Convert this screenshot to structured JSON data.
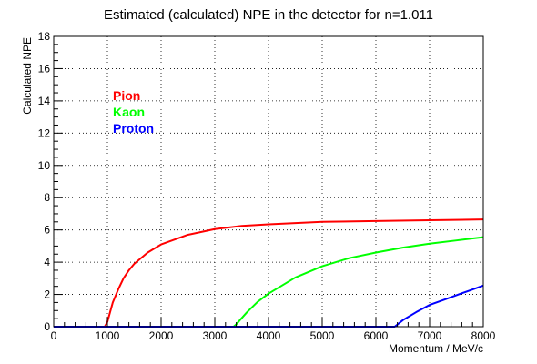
{
  "chart_data": {
    "type": "line",
    "title": "Estimated (calculated) NPE in the detector for n=1.011",
    "xlabel": "Momentum / MeV/c",
    "ylabel": "Calculated NPE",
    "xlim": [
      0,
      8000
    ],
    "ylim": [
      0,
      18
    ],
    "grid": true,
    "x_ticks": [
      0,
      1000,
      2000,
      3000,
      4000,
      5000,
      6000,
      7000,
      8000
    ],
    "y_ticks": [
      0,
      2,
      4,
      6,
      8,
      10,
      12,
      14,
      16,
      18
    ],
    "legend_position": "upper-left",
    "series": [
      {
        "name": "Pion",
        "color": "#ff0000",
        "x": [
          0,
          400,
          800,
          950,
          1000,
          1100,
          1200,
          1300,
          1400,
          1500,
          1750,
          2000,
          2500,
          3000,
          3500,
          4000,
          5000,
          6000,
          7000,
          8000
        ],
        "y": [
          0,
          0,
          0,
          0,
          0.3,
          1.5,
          2.3,
          3.0,
          3.5,
          3.9,
          4.6,
          5.1,
          5.7,
          6.05,
          6.25,
          6.35,
          6.5,
          6.55,
          6.6,
          6.65
        ]
      },
      {
        "name": "Kaon",
        "color": "#00ff00",
        "x": [
          0,
          1000,
          2000,
          3000,
          3350,
          3400,
          3600,
          3800,
          4000,
          4500,
          5000,
          5500,
          6000,
          6500,
          7000,
          7500,
          8000
        ],
        "y": [
          0,
          0,
          0,
          0,
          0,
          0.15,
          0.9,
          1.55,
          2.05,
          3.05,
          3.75,
          4.25,
          4.6,
          4.9,
          5.15,
          5.35,
          5.55
        ]
      },
      {
        "name": "Proton",
        "color": "#0000ff",
        "x": [
          0,
          1000,
          2000,
          3000,
          4000,
          5000,
          6000,
          6350,
          6500,
          6750,
          7000,
          7250,
          7500,
          7750,
          8000
        ],
        "y": [
          0,
          0,
          0,
          0,
          0,
          0,
          0,
          0,
          0.4,
          0.9,
          1.35,
          1.65,
          1.95,
          2.25,
          2.55
        ]
      }
    ]
  }
}
